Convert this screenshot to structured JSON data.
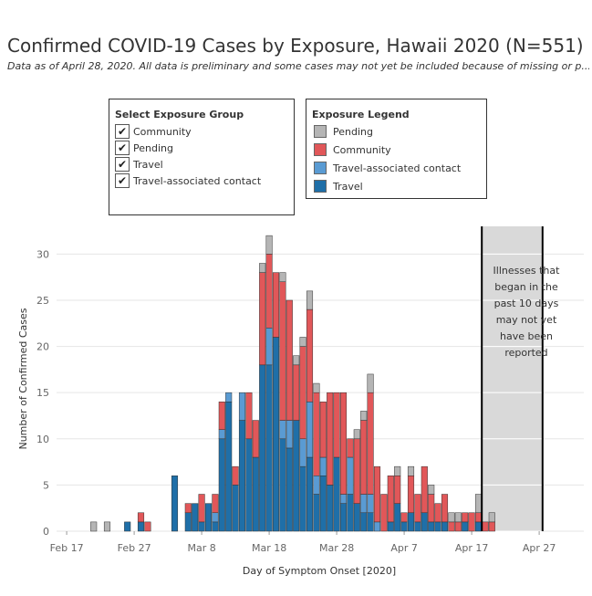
{
  "title": "Confirmed COVID-19 Cases by Exposure, Hawaii 2020 (N=551)",
  "subtitle": "Data as of April 28, 2020. All data is preliminary and some cases may not yet be included because of missing or p...",
  "filter": {
    "title": "Select Exposure Group",
    "items": [
      {
        "label": "Community",
        "checked": true
      },
      {
        "label": "Pending",
        "checked": true
      },
      {
        "label": "Travel",
        "checked": true
      },
      {
        "label": "Travel-associated contact",
        "checked": true
      }
    ],
    "check_glyph": "✔"
  },
  "legend": {
    "title": "Exposure Legend",
    "items": [
      {
        "label": "Pending",
        "color": "#b5b5b5"
      },
      {
        "label": "Community",
        "color": "#e15759"
      },
      {
        "label": "Travel-associated contact",
        "color": "#5a9bd3"
      },
      {
        "label": "Travel",
        "color": "#1f6fa8"
      }
    ]
  },
  "note_text": "Illnesses that began in the past 10 days may not yet have been reported",
  "chart_data": {
    "type": "bar",
    "stacked": true,
    "xlabel": "Day of Symptom Onset [2020]",
    "ylabel": "Number of Confirmed Cases",
    "ylim": [
      0,
      33
    ],
    "yticks": [
      0,
      5,
      10,
      15,
      20,
      25,
      30
    ],
    "x_start": "2020-02-16",
    "x_end": "2020-04-30",
    "xticks": [
      {
        "date": "2020-02-17",
        "label": "Feb 17"
      },
      {
        "date": "2020-02-27",
        "label": "Feb 27"
      },
      {
        "date": "2020-03-08",
        "label": "Mar 8"
      },
      {
        "date": "2020-03-18",
        "label": "Mar 18"
      },
      {
        "date": "2020-03-28",
        "label": "Mar 28"
      },
      {
        "date": "2020-04-07",
        "label": "Apr 7"
      },
      {
        "date": "2020-04-17",
        "label": "Apr 17"
      },
      {
        "date": "2020-04-27",
        "label": "Apr 27"
      }
    ],
    "shaded_region": {
      "start": "2020-04-19",
      "end": "2020-04-28"
    },
    "series_order": [
      "Travel",
      "Travel-associated contact",
      "Community",
      "Pending"
    ],
    "colors": {
      "Travel": "#1f6fa8",
      "Travel-associated contact": "#5a9bd3",
      "Community": "#e15759",
      "Pending": "#b5b5b5"
    },
    "dates": [
      "2020-02-21",
      "2020-02-23",
      "2020-02-26",
      "2020-02-28",
      "2020-02-29",
      "2020-03-03",
      "2020-03-04",
      "2020-03-06",
      "2020-03-07",
      "2020-03-08",
      "2020-03-09",
      "2020-03-10",
      "2020-03-11",
      "2020-03-12",
      "2020-03-13",
      "2020-03-14",
      "2020-03-15",
      "2020-03-16",
      "2020-03-17",
      "2020-03-18",
      "2020-03-19",
      "2020-03-20",
      "2020-03-21",
      "2020-03-22",
      "2020-03-23",
      "2020-03-24",
      "2020-03-25",
      "2020-03-26",
      "2020-03-27",
      "2020-03-28",
      "2020-03-29",
      "2020-03-30",
      "2020-03-31",
      "2020-04-01",
      "2020-04-02",
      "2020-04-03",
      "2020-04-04",
      "2020-04-05",
      "2020-04-06",
      "2020-04-07",
      "2020-04-08",
      "2020-04-09",
      "2020-04-10",
      "2020-04-11",
      "2020-04-12",
      "2020-04-13",
      "2020-04-14",
      "2020-04-15",
      "2020-04-16",
      "2020-04-17",
      "2020-04-18",
      "2020-04-19",
      "2020-04-20",
      "2020-04-21"
    ],
    "series": [
      {
        "name": "Travel",
        "values": [
          0,
          0,
          1,
          1,
          0,
          0,
          6,
          2,
          3,
          1,
          3,
          1,
          10,
          14,
          5,
          12,
          10,
          8,
          18,
          18,
          21,
          10,
          9,
          12,
          7,
          8,
          4,
          6,
          5,
          8,
          3,
          4,
          3,
          2,
          2,
          0,
          0,
          1,
          3,
          1,
          2,
          1,
          2,
          1,
          1,
          1,
          0,
          0,
          1,
          0,
          1,
          0,
          0,
          0
        ]
      },
      {
        "name": "Travel-associated contact",
        "values": [
          0,
          0,
          0,
          0,
          0,
          0,
          0,
          0,
          0,
          0,
          0,
          1,
          1,
          1,
          0,
          3,
          0,
          0,
          0,
          4,
          0,
          2,
          3,
          0,
          3,
          6,
          2,
          2,
          0,
          0,
          1,
          4,
          0,
          2,
          2,
          1,
          0,
          0,
          0,
          0,
          0,
          0,
          0,
          0,
          0,
          0,
          0,
          0,
          0,
          0,
          0,
          0,
          0,
          0
        ]
      },
      {
        "name": "Community",
        "values": [
          0,
          0,
          0,
          1,
          1,
          0,
          0,
          1,
          0,
          3,
          0,
          2,
          3,
          0,
          2,
          0,
          5,
          4,
          10,
          8,
          7,
          15,
          13,
          6,
          10,
          10,
          9,
          6,
          10,
          7,
          11,
          2,
          7,
          8,
          11,
          6,
          4,
          5,
          3,
          1,
          4,
          3,
          5,
          3,
          2,
          3,
          1,
          1,
          1,
          2,
          1,
          1,
          1,
          0
        ]
      },
      {
        "name": "Pending",
        "values": [
          1,
          1,
          0,
          0,
          0,
          0,
          0,
          0,
          0,
          0,
          0,
          0,
          0,
          0,
          0,
          0,
          0,
          0,
          1,
          2,
          0,
          1,
          0,
          1,
          1,
          2,
          1,
          0,
          0,
          0,
          0,
          0,
          1,
          1,
          2,
          0,
          0,
          0,
          1,
          0,
          1,
          0,
          0,
          1,
          0,
          0,
          1,
          1,
          0,
          0,
          2,
          0,
          1,
          0
        ]
      }
    ]
  }
}
